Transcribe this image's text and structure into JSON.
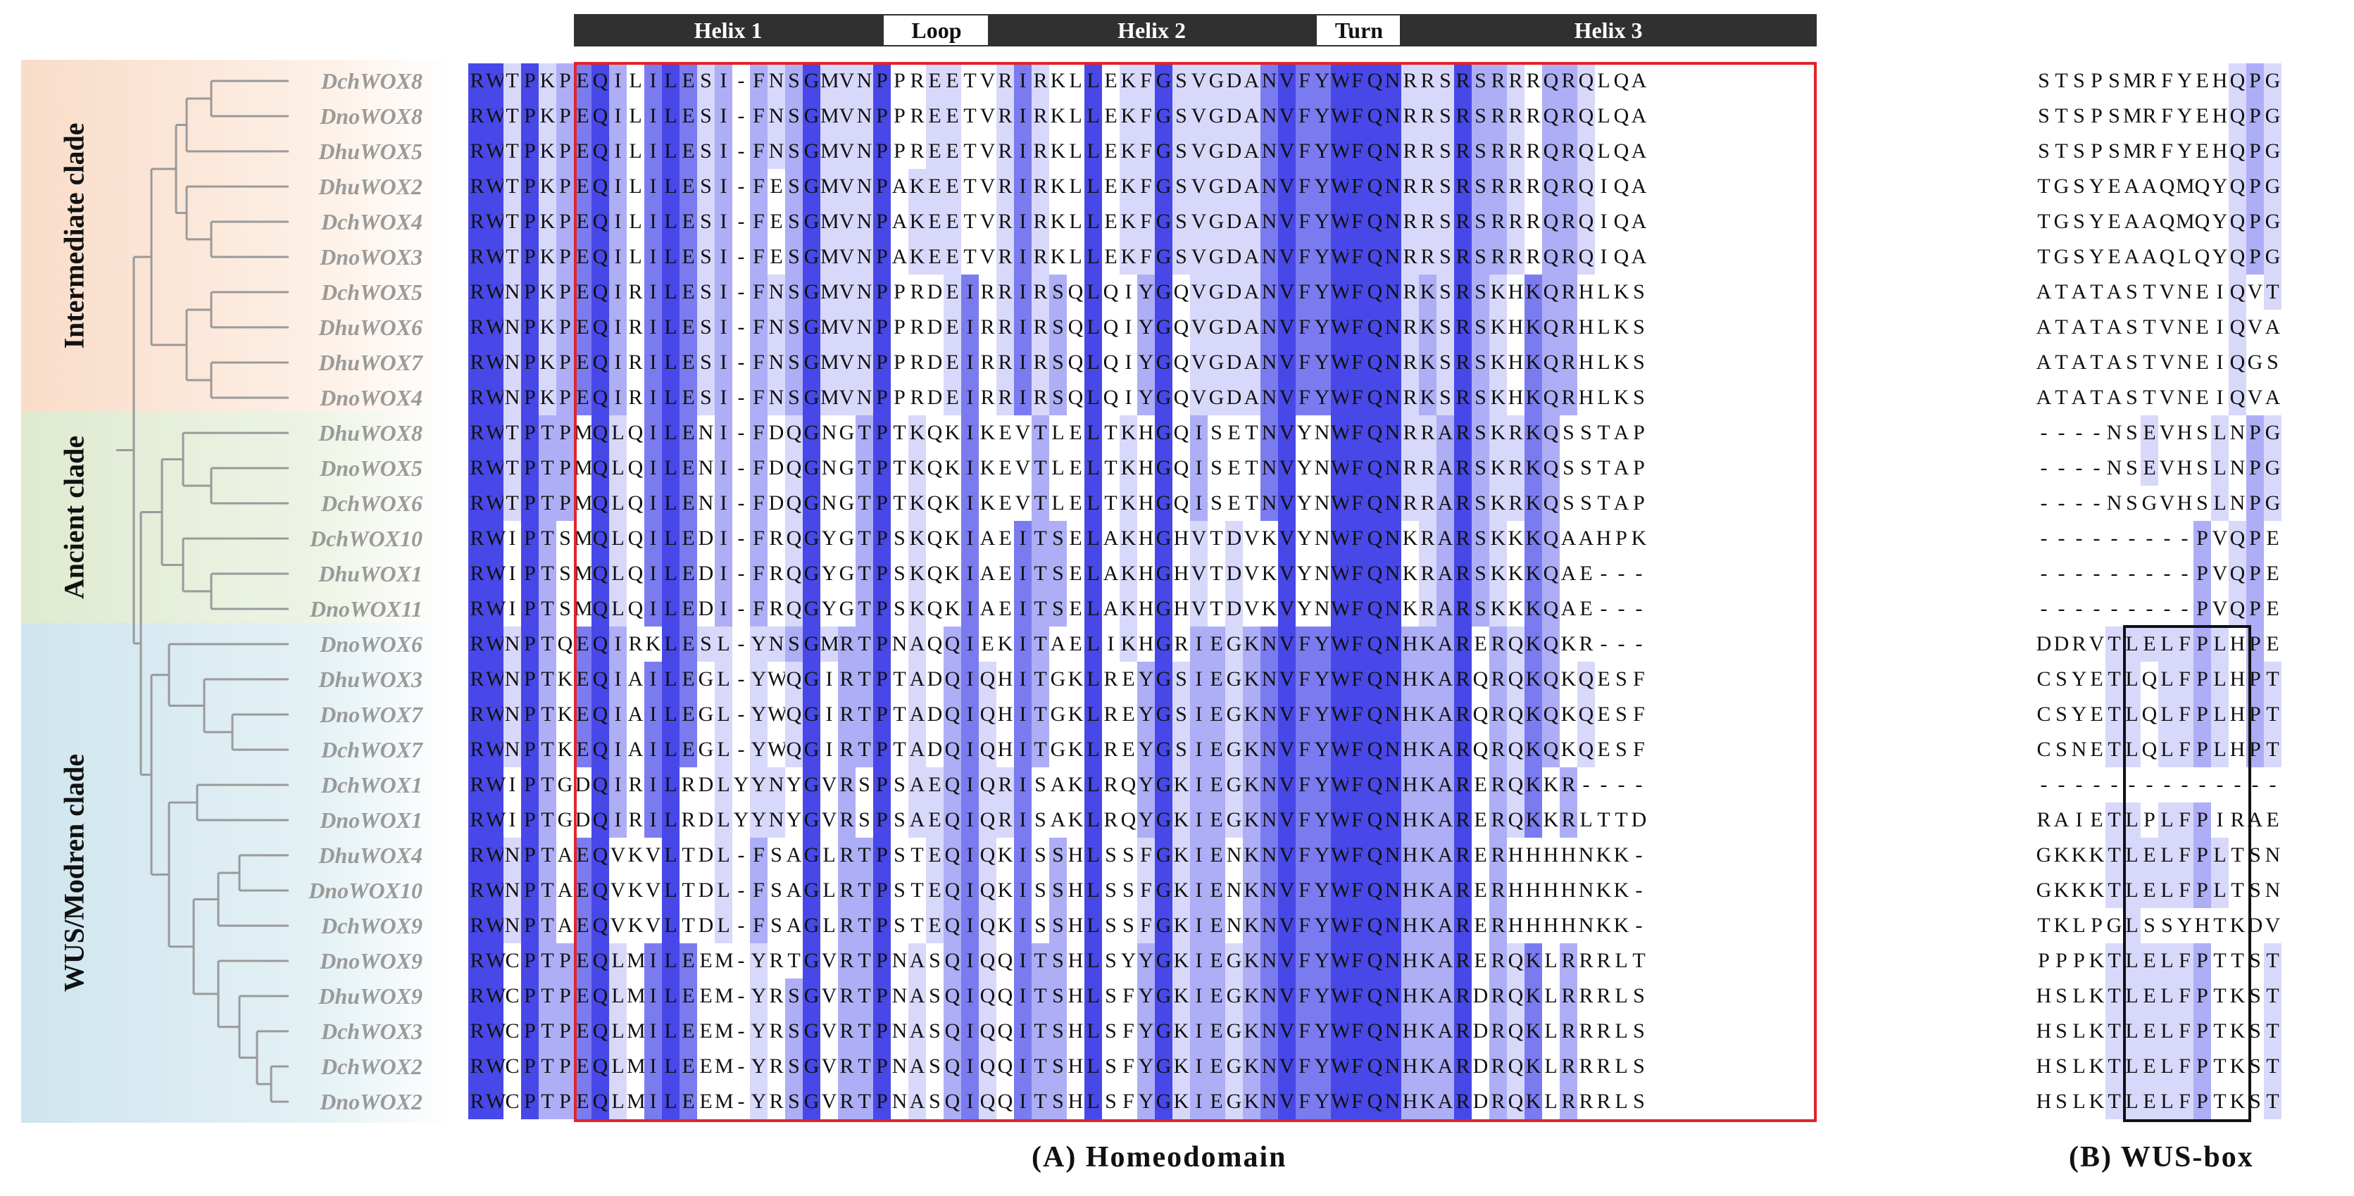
{
  "structure": {
    "helix1": "Helix 1",
    "loop": "Loop",
    "helix2": "Helix 2",
    "turn": "Turn",
    "helix3": "Helix 3"
  },
  "clades": {
    "intermediate": "Intermediate clade",
    "ancient": "Ancient clade",
    "wus": "WUS/Modren clade"
  },
  "panels": {
    "a": "(A) Homeodomain",
    "b": "(B) WUS-box"
  },
  "colors": {
    "dark": "#4848e8",
    "mid": "#7b7bf0",
    "light": "#aeaef6",
    "pale": "#d8d8fb",
    "intermediate_bg": "#fbe4d4",
    "ancient_bg": "#e6efd6",
    "wus_bg": "#d6eaf0"
  },
  "sequences": [
    {
      "name": "DchWOX8",
      "homeodomain": "RWTPKPEQILILESI-FNSGMVNPPREETVRIRKLLEKFGSVGDANVFYWFQNRRSRSRRRQRQLQA",
      "wusbox": "STSPSMRFYEHQPG"
    },
    {
      "name": "DnoWOX8",
      "homeodomain": "RWTPKPEQILILESI-FNSGMVNPPREETVRIRKLLEKFGSVGDANVFYWFQNRRSRSRRRQRQLQA",
      "wusbox": "STSPSMRFYEHQPG"
    },
    {
      "name": "DhuWOX5",
      "homeodomain": "RWTPKPEQILILESI-FNSGMVNPPREETVRIRKLLEKFGSVGDANVFYWFQNRRSRSRRRQRQLQA",
      "wusbox": "STSPSMRFYEHQPG"
    },
    {
      "name": "DhuWOX2",
      "homeodomain": "RWTPKPEQILILESI-FESGMVNPAKEETVRIRKLLEKFGSVGDANVFYWFQNRRSRSRRRQRQIQA",
      "wusbox": "TGSYEAAQMQYQPG"
    },
    {
      "name": "DchWOX4",
      "homeodomain": "RWTPKPEQILILESI-FESGMVNPAKEETVRIRKLLEKFGSVGDANVFYWFQNRRSRSRRRQRQIQA",
      "wusbox": "TGSYEAAQMQYQPG"
    },
    {
      "name": "DnoWOX3",
      "homeodomain": "RWTPKPEQILILESI-FESGMVNPAKEETVRIRKLLEKFGSVGDANVFYWFQNRRSRSRRRQRQIQA",
      "wusbox": "TGSYEAAQLQYQPG"
    },
    {
      "name": "DchWOX5",
      "homeodomain": "RWNPKPEQIRILESI-FNSGMVNPPRDEIRRIRSQLQIYGQVGDANVFYWFQNRKSRSKHKQRHLKS",
      "wusbox": "ATATASTVNEIQVT"
    },
    {
      "name": "DhuWOX6",
      "homeodomain": "RWNPKPEQIRILESI-FNSGMVNPPRDEIRRIRSQLQIYGQVGDANVFYWFQNRKSRSKHKQRHLKS",
      "wusbox": "ATATASTVNEIQVA"
    },
    {
      "name": "DhuWOX7",
      "homeodomain": "RWNPKPEQIRILESI-FNSGMVNPPRDEIRRIRSQLQIYGQVGDANVFYWFQNRKSRSKHKQRHLKS",
      "wusbox": "ATATASTVNEIQGS"
    },
    {
      "name": "DnoWOX4",
      "homeodomain": "RWNPKPEQIRILESI-FNSGMVNPPRDEIRRIRSQLQIYGQVGDANVFYWFQNRKSRSKHKQRHLKS",
      "wusbox": "ATATASTVNEIQVA"
    },
    {
      "name": "DhuWOX8",
      "homeodomain": "RWTPTPMQLQILENI-FDQGNGTPTKQKIKEVTLELTKHGQISETNVYNWFQNRRARSKRKQSSTAP",
      "wusbox": "----NSEVHSLNPG"
    },
    {
      "name": "DnoWOX5",
      "homeodomain": "RWTPTPMQLQILENI-FDQGNGTPTKQKIKEVTLELTKHGQISETNVYNWFQNRRARSKRKQSSTAP",
      "wusbox": "----NSEVHSLNPG"
    },
    {
      "name": "DchWOX6",
      "homeodomain": "RWTPTPMQLQILENI-FDQGNGTPTKQKIKEVTLELTKHGQISETNVYNWFQNRRARSKRKQSSTAP",
      "wusbox": "----NSGVHSLNPG"
    },
    {
      "name": "DchWOX10",
      "homeodomain": "RWIPTSMQLQILEDI-FRQGYGTPSKQKIAEITSELAKHGHVTDVKVYNWFQNKRARSKKKQAAHPK",
      "wusbox": "---------PVQPE"
    },
    {
      "name": "DhuWOX1",
      "homeodomain": "RWIPTSMQLQILEDI-FRQGYGTPSKQKIAEITSELAKHGHVTDVKVYNWFQNKRARSKKKQAE---",
      "wusbox": "---------PVQPE"
    },
    {
      "name": "DnoWOX11",
      "homeodomain": "RWIPTSMQLQILEDI-FRQGYGTPSKQKIAEITSELAKHGHVTDVKVYNWFQNKRARSKKKQAE---",
      "wusbox": "---------PVQPE"
    },
    {
      "name": "DnoWOX6",
      "homeodomain": "RWNPTQEQIRKLESL-YNSGMRTPNAQQIEKITAELIKHGRIEGKNVFYWFQNHKARERQKQKR---",
      "wusbox": "DDRVTLELFPLHPE"
    },
    {
      "name": "DhuWOX3",
      "homeodomain": "RWNPTKEQIAILEGL-YWQGIRTPTADQIQHITGKLREYGSIEGKNVFYWFQNHKARQRQKQKQESF",
      "wusbox": "CSYETLQLFPLHPT"
    },
    {
      "name": "DnoWOX7",
      "homeodomain": "RWNPTKEQIAILEGL-YWQGIRTPTADQIQHITGKLREYGSIEGKNVFYWFQNHKARQRQKQKQESF",
      "wusbox": "CSYETLQLFPLHPT"
    },
    {
      "name": "DchWOX7",
      "homeodomain": "RWNPTKEQIAILEGL-YWQGIRTPTADQIQHITGKLREYGSIEGKNVFYWFQNHKARQRQKQKQESF",
      "wusbox": "CSNETLQLFPLHPT"
    },
    {
      "name": "DchWOX1",
      "homeodomain": "RWIPTGDQIRILRDLYYNYGVRSPSAEQIQRISAKLRQYGKIEGKNVFYWFQNHKARERQKKR----",
      "wusbox": "--------------"
    },
    {
      "name": "DnoWOX1",
      "homeodomain": "RWIPTGDQIRILRDLYYNYGVRSPSAEQIQRISAKLRQYGKIEGKNVFYWFQNHKARERQKKRLTTD",
      "wusbox": "RAIETLPLFPIRAE"
    },
    {
      "name": "DhuWOX4",
      "homeodomain": "RWNPTAEQVKVLTDL-FSAGLRTPSTEQIQKISSHLSSFGKIENKNVFYWFQNHKARERHHHHNKK-",
      "wusbox": "GKKKTLELFPLTSN"
    },
    {
      "name": "DnoWOX10",
      "homeodomain": "RWNPTAEQVKVLTDL-FSAGLRTPSTEQIQKISSHLSSFGKIENKNVFYWFQNHKARERHHHHNKK-",
      "wusbox": "GKKKTLELFPLTSN"
    },
    {
      "name": "DchWOX9",
      "homeodomain": "RWNPTAEQVKVLTDL-FSAGLRTPSTEQIQKISSHLSSFGKIENKNVFYWFQNHKARERHHHHNKK-",
      "wusbox": "TKLPGLSSYHTKDV"
    },
    {
      "name": "DnoWOX9",
      "homeodomain": "RWCPTPEQLMILEEM-YRTGVRTPNASQIQQITSHLSYYGKIEGKNVFYWFQNHKARERQKLRRRLT",
      "wusbox": "PPPKTLELFPTTST"
    },
    {
      "name": "DhuWOX9",
      "homeodomain": "RWCPTPEQLMILEEM-YRSGVRTPNASQIQQITSHLSFYGKIEGKNVFYWFQNHKARDRQKLRRRLS",
      "wusbox": "HSLKTLELFPTKST"
    },
    {
      "name": "DchWOX3",
      "homeodomain": "RWCPTPEQLMILEEM-YRSGVRTPNASQIQQITSHLSFYGKIEGKNVFYWFQNHKARDRQKLRRRLS",
      "wusbox": "HSLKTLELFPTKST"
    },
    {
      "name": "DchWOX2",
      "homeodomain": "RWCPTPEQLMILEEM-YRSGVRTPNASQIQQITSHLSFYGKIEGKNVFYWFQNHKARDRQKLRRRLS",
      "wusbox": "HSLKTLELFPTKST"
    },
    {
      "name": "DnoWOX2",
      "homeodomain": "RWCPTPEQLMILEEM-YRSGVRTPNASQIQQITSHLSFYGKIEGKNVFYWFQNHKARDRQKLRRRLS",
      "wusbox": "HSLKTLELFPTKST"
    }
  ]
}
